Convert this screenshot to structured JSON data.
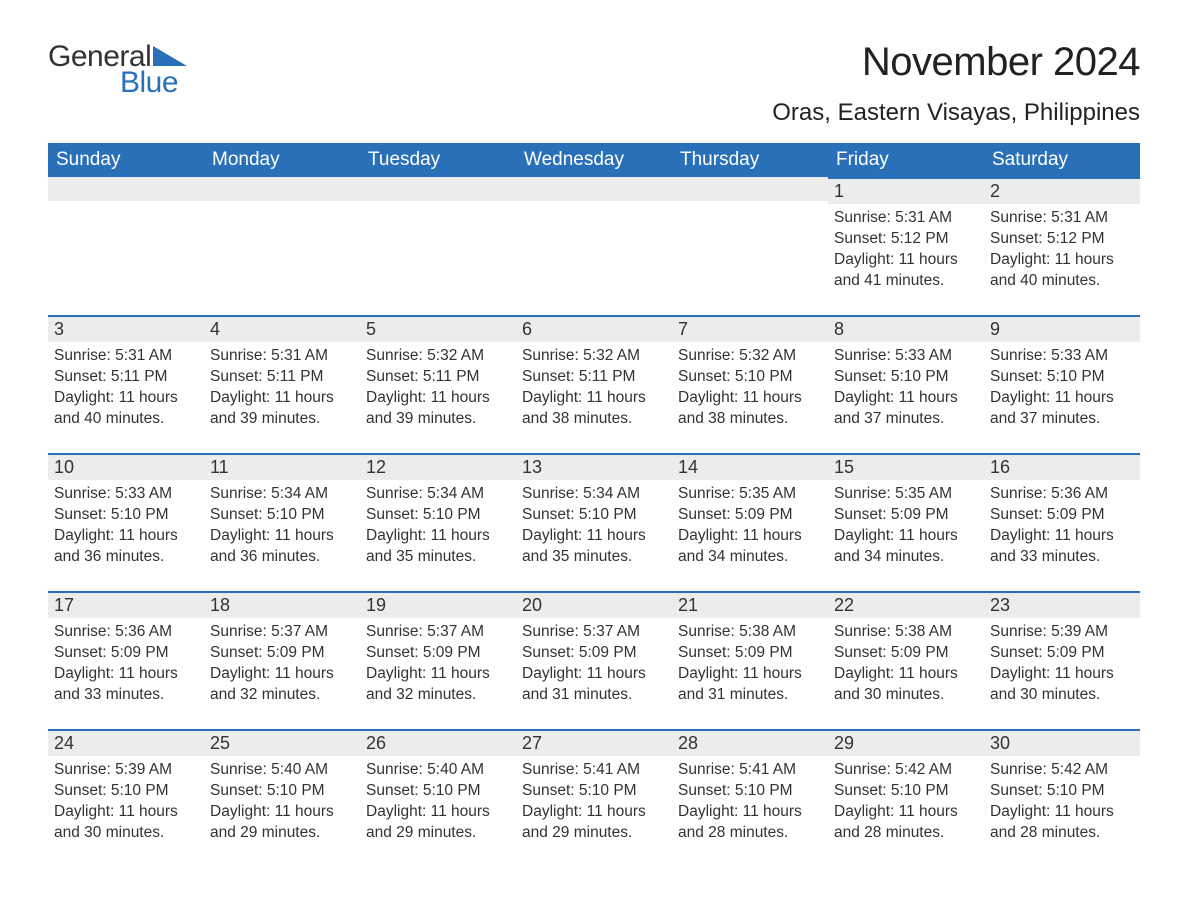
{
  "logo": {
    "text_general": "General",
    "text_blue": "Blue",
    "accent_color": "#2970b8"
  },
  "title": "November 2024",
  "location": "Oras, Eastern Visayas, Philippines",
  "colors": {
    "header_bg": "#2970b8",
    "header_text": "#ffffff",
    "daynum_bg": "#ececec",
    "daynum_border": "#2970b8",
    "text": "#333333",
    "page_bg": "#ffffff"
  },
  "fonts": {
    "title_pt": 40,
    "location_pt": 24,
    "header_pt": 19,
    "daynum_pt": 18,
    "body_pt": 15.5
  },
  "day_headers": [
    "Sunday",
    "Monday",
    "Tuesday",
    "Wednesday",
    "Thursday",
    "Friday",
    "Saturday"
  ],
  "weeks": [
    [
      null,
      null,
      null,
      null,
      null,
      {
        "n": "1",
        "sunrise": "5:31 AM",
        "sunset": "5:12 PM",
        "daylight": "11 hours and 41 minutes."
      },
      {
        "n": "2",
        "sunrise": "5:31 AM",
        "sunset": "5:12 PM",
        "daylight": "11 hours and 40 minutes."
      }
    ],
    [
      {
        "n": "3",
        "sunrise": "5:31 AM",
        "sunset": "5:11 PM",
        "daylight": "11 hours and 40 minutes."
      },
      {
        "n": "4",
        "sunrise": "5:31 AM",
        "sunset": "5:11 PM",
        "daylight": "11 hours and 39 minutes."
      },
      {
        "n": "5",
        "sunrise": "5:32 AM",
        "sunset": "5:11 PM",
        "daylight": "11 hours and 39 minutes."
      },
      {
        "n": "6",
        "sunrise": "5:32 AM",
        "sunset": "5:11 PM",
        "daylight": "11 hours and 38 minutes."
      },
      {
        "n": "7",
        "sunrise": "5:32 AM",
        "sunset": "5:10 PM",
        "daylight": "11 hours and 38 minutes."
      },
      {
        "n": "8",
        "sunrise": "5:33 AM",
        "sunset": "5:10 PM",
        "daylight": "11 hours and 37 minutes."
      },
      {
        "n": "9",
        "sunrise": "5:33 AM",
        "sunset": "5:10 PM",
        "daylight": "11 hours and 37 minutes."
      }
    ],
    [
      {
        "n": "10",
        "sunrise": "5:33 AM",
        "sunset": "5:10 PM",
        "daylight": "11 hours and 36 minutes."
      },
      {
        "n": "11",
        "sunrise": "5:34 AM",
        "sunset": "5:10 PM",
        "daylight": "11 hours and 36 minutes."
      },
      {
        "n": "12",
        "sunrise": "5:34 AM",
        "sunset": "5:10 PM",
        "daylight": "11 hours and 35 minutes."
      },
      {
        "n": "13",
        "sunrise": "5:34 AM",
        "sunset": "5:10 PM",
        "daylight": "11 hours and 35 minutes."
      },
      {
        "n": "14",
        "sunrise": "5:35 AM",
        "sunset": "5:09 PM",
        "daylight": "11 hours and 34 minutes."
      },
      {
        "n": "15",
        "sunrise": "5:35 AM",
        "sunset": "5:09 PM",
        "daylight": "11 hours and 34 minutes."
      },
      {
        "n": "16",
        "sunrise": "5:36 AM",
        "sunset": "5:09 PM",
        "daylight": "11 hours and 33 minutes."
      }
    ],
    [
      {
        "n": "17",
        "sunrise": "5:36 AM",
        "sunset": "5:09 PM",
        "daylight": "11 hours and 33 minutes."
      },
      {
        "n": "18",
        "sunrise": "5:37 AM",
        "sunset": "5:09 PM",
        "daylight": "11 hours and 32 minutes."
      },
      {
        "n": "19",
        "sunrise": "5:37 AM",
        "sunset": "5:09 PM",
        "daylight": "11 hours and 32 minutes."
      },
      {
        "n": "20",
        "sunrise": "5:37 AM",
        "sunset": "5:09 PM",
        "daylight": "11 hours and 31 minutes."
      },
      {
        "n": "21",
        "sunrise": "5:38 AM",
        "sunset": "5:09 PM",
        "daylight": "11 hours and 31 minutes."
      },
      {
        "n": "22",
        "sunrise": "5:38 AM",
        "sunset": "5:09 PM",
        "daylight": "11 hours and 30 minutes."
      },
      {
        "n": "23",
        "sunrise": "5:39 AM",
        "sunset": "5:09 PM",
        "daylight": "11 hours and 30 minutes."
      }
    ],
    [
      {
        "n": "24",
        "sunrise": "5:39 AM",
        "sunset": "5:10 PM",
        "daylight": "11 hours and 30 minutes."
      },
      {
        "n": "25",
        "sunrise": "5:40 AM",
        "sunset": "5:10 PM",
        "daylight": "11 hours and 29 minutes."
      },
      {
        "n": "26",
        "sunrise": "5:40 AM",
        "sunset": "5:10 PM",
        "daylight": "11 hours and 29 minutes."
      },
      {
        "n": "27",
        "sunrise": "5:41 AM",
        "sunset": "5:10 PM",
        "daylight": "11 hours and 29 minutes."
      },
      {
        "n": "28",
        "sunrise": "5:41 AM",
        "sunset": "5:10 PM",
        "daylight": "11 hours and 28 minutes."
      },
      {
        "n": "29",
        "sunrise": "5:42 AM",
        "sunset": "5:10 PM",
        "daylight": "11 hours and 28 minutes."
      },
      {
        "n": "30",
        "sunrise": "5:42 AM",
        "sunset": "5:10 PM",
        "daylight": "11 hours and 28 minutes."
      }
    ]
  ],
  "labels": {
    "sunrise": "Sunrise: ",
    "sunset": "Sunset: ",
    "daylight": "Daylight: "
  }
}
